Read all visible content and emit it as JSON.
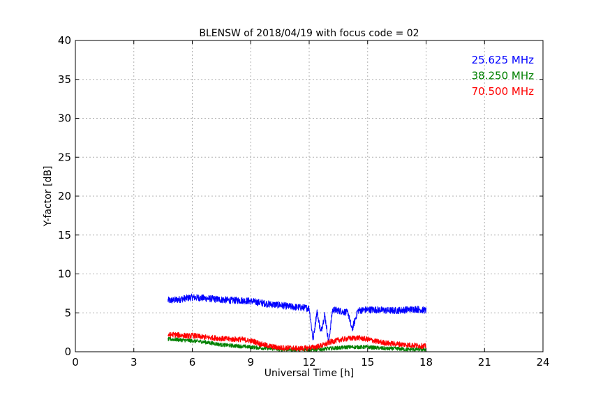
{
  "chart_data": {
    "type": "line",
    "title": "BLENSW of 2018/04/19 with focus code = 02",
    "xlabel": "Universal Time [h]",
    "ylabel": "Y-factor [dB]",
    "xlim": [
      0,
      24
    ],
    "ylim": [
      0,
      40
    ],
    "xticks": [
      "0",
      "3",
      "6",
      "9",
      "12",
      "15",
      "18",
      "21",
      "24"
    ],
    "yticks": [
      "0",
      "5",
      "10",
      "15",
      "20",
      "25",
      "30",
      "35",
      "40"
    ],
    "grid": true,
    "legend_position": "top-right",
    "series": [
      {
        "name": "25.625 MHz",
        "color": "#0000ff",
        "noise": 0.45,
        "x": [
          4.75,
          5.0,
          5.5,
          6.0,
          6.5,
          7.0,
          7.5,
          8.0,
          8.5,
          9.0,
          9.5,
          10.0,
          10.5,
          11.0,
          11.5,
          12.0,
          12.2,
          12.4,
          12.6,
          12.8,
          13.0,
          13.2,
          13.5,
          14.0,
          14.2,
          14.5,
          15.0,
          15.5,
          16.0,
          16.5,
          17.0,
          17.5,
          18.0
        ],
        "y": [
          6.6,
          6.6,
          6.8,
          7.0,
          6.9,
          6.8,
          6.7,
          6.6,
          6.6,
          6.5,
          6.3,
          6.1,
          6.0,
          5.8,
          5.7,
          5.6,
          1.5,
          5.2,
          2.5,
          4.8,
          1.2,
          5.4,
          5.3,
          5.0,
          2.8,
          5.3,
          5.4,
          5.4,
          5.3,
          5.3,
          5.4,
          5.5,
          5.3
        ]
      },
      {
        "name": "38.250 MHz",
        "color": "#008000",
        "noise": 0.25,
        "x": [
          4.75,
          5.0,
          5.5,
          6.0,
          6.5,
          7.0,
          7.5,
          8.0,
          8.5,
          9.0,
          9.5,
          10.0,
          10.5,
          11.0,
          11.5,
          12.0,
          12.5,
          13.0,
          13.5,
          14.0,
          14.5,
          15.0,
          15.5,
          16.0,
          16.5,
          17.0,
          17.5,
          18.0
        ],
        "y": [
          1.6,
          1.6,
          1.5,
          1.4,
          1.3,
          1.1,
          0.9,
          0.8,
          0.7,
          0.6,
          0.5,
          0.4,
          0.3,
          0.3,
          0.3,
          0.3,
          0.3,
          0.4,
          0.5,
          0.6,
          0.6,
          0.6,
          0.5,
          0.4,
          0.4,
          0.3,
          0.3,
          0.3
        ]
      },
      {
        "name": "70.500 MHz",
        "color": "#ff0000",
        "noise": 0.35,
        "x": [
          4.75,
          5.0,
          5.5,
          5.9,
          6.0,
          6.5,
          7.0,
          7.5,
          8.0,
          8.5,
          9.0,
          9.2,
          9.5,
          10.0,
          10.5,
          11.0,
          11.5,
          12.0,
          12.5,
          12.9,
          13.0,
          13.5,
          14.0,
          14.5,
          15.0,
          15.5,
          16.0,
          16.5,
          17.0,
          17.5,
          18.0
        ],
        "y": [
          2.1,
          2.2,
          2.1,
          2.0,
          2.1,
          1.9,
          1.8,
          1.7,
          1.6,
          1.6,
          1.4,
          1.3,
          1.0,
          0.7,
          0.5,
          0.5,
          0.4,
          0.5,
          0.7,
          1.0,
          1.2,
          1.5,
          1.7,
          1.8,
          1.6,
          1.3,
          1.1,
          1.0,
          0.9,
          0.8,
          0.7
        ]
      }
    ]
  }
}
